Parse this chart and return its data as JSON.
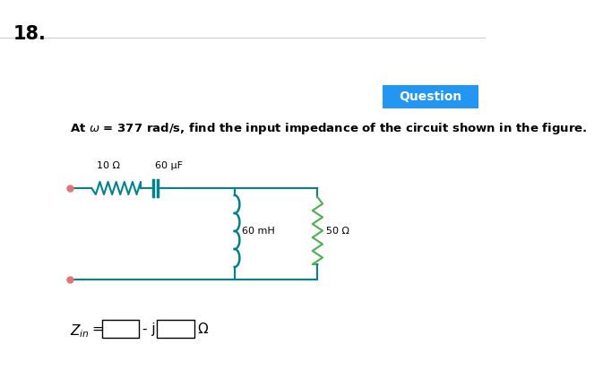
{
  "title_number": "18.",
  "question_text": "At ω = 377 rad/s, find the input impedance of the circuit shown in the figure.",
  "question_label": "Question",
  "question_bg": "#2196F3",
  "resistor_series": "10 Ω",
  "capacitor": "60 μF",
  "inductor": "60 mH",
  "resistor_parallel": "50 Ω",
  "zin_label": "Z",
  "zin_sub": "in",
  "omega_symbol": "ω",
  "background": "#ffffff",
  "circuit_color": "#00838f",
  "inductor_color": "#00838f",
  "resistor_color": "#4caf50",
  "resistor_series_color": "#00838f",
  "input_dot_color": "#e57373",
  "line_width": 1.5
}
